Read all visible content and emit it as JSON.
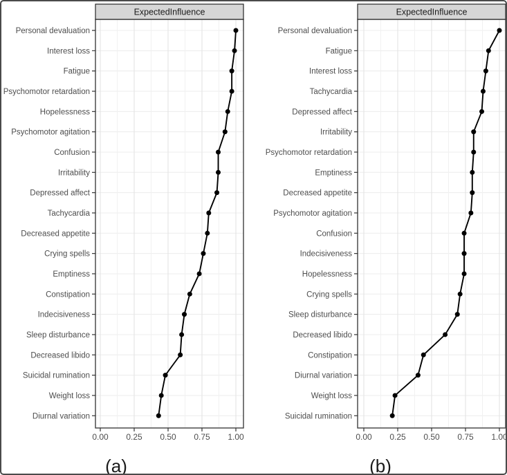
{
  "figure": {
    "background": "#ffffff",
    "frame_color": "#4a4a4a"
  },
  "colors": {
    "strip_fill": "#d6d6d6",
    "strip_border": "#262626",
    "panel_border": "#3f3f3f",
    "grid_major": "#e2e2e2",
    "grid_minor": "#f1f1f1",
    "grid_row": "#ececec",
    "data": "#000000",
    "axis_text": "#4d4d4d",
    "tick": "#333333",
    "strip_text": "#1a1a1a",
    "caption_text": "#1a1a1a"
  },
  "chart_data": [
    {
      "type": "scatter",
      "variant": "cleveland-dot-plot",
      "title": "ExpectedInfluence",
      "caption": "(a)",
      "xlabel": "",
      "ylabel": "",
      "xlim": [
        0,
        1
      ],
      "x_ticks": [
        0,
        0.25,
        0.5,
        0.75,
        1
      ],
      "x_tick_labels": [
        "0.00",
        "0.25",
        "0.50",
        "0.75",
        "1.00"
      ],
      "x_minor_ticks": [
        0.125,
        0.375,
        0.625,
        0.875
      ],
      "grid": true,
      "legend": "none",
      "categories": [
        "Personal devaluation",
        "Interest loss",
        "Fatigue",
        "Psychomotor retardation",
        "Hopelessness",
        "Psychomotor agitation",
        "Confusion",
        "Irritability",
        "Depressed affect",
        "Tachycardia",
        "Decreased appetite",
        "Crying spells",
        "Emptiness",
        "Constipation",
        "Indecisiveness",
        "Sleep disturbance",
        "Decreased libido",
        "Suicidal rumination",
        "Weight loss",
        "Diurnal variation"
      ],
      "values": [
        1.0,
        0.99,
        0.97,
        0.97,
        0.94,
        0.92,
        0.87,
        0.87,
        0.86,
        0.8,
        0.79,
        0.76,
        0.73,
        0.66,
        0.62,
        0.6,
        0.59,
        0.48,
        0.45,
        0.43
      ]
    },
    {
      "type": "scatter",
      "variant": "cleveland-dot-plot",
      "title": "ExpectedInfluence",
      "caption": "(b)",
      "xlabel": "",
      "ylabel": "",
      "xlim": [
        0,
        1
      ],
      "x_ticks": [
        0,
        0.25,
        0.5,
        0.75,
        1
      ],
      "x_tick_labels": [
        "0.00",
        "0.25",
        "0.50",
        "0.75",
        "1.00"
      ],
      "x_minor_ticks": [
        0.125,
        0.375,
        0.625,
        0.875
      ],
      "grid": true,
      "legend": "none",
      "categories": [
        "Personal devaluation",
        "Fatigue",
        "Interest loss",
        "Tachycardia",
        "Depressed affect",
        "Irritability",
        "Psychomotor retardation",
        "Emptiness",
        "Decreased appetite",
        "Psychomotor agitation",
        "Confusion",
        "Indecisiveness",
        "Hopelessness",
        "Crying spells",
        "Sleep disturbance",
        "Decreased libido",
        "Constipation",
        "Diurnal variation",
        "Weight loss",
        "Suicidal rumination"
      ],
      "values": [
        1.0,
        0.92,
        0.9,
        0.88,
        0.87,
        0.81,
        0.81,
        0.8,
        0.8,
        0.79,
        0.74,
        0.74,
        0.74,
        0.71,
        0.69,
        0.6,
        0.44,
        0.4,
        0.23,
        0.21
      ]
    }
  ]
}
